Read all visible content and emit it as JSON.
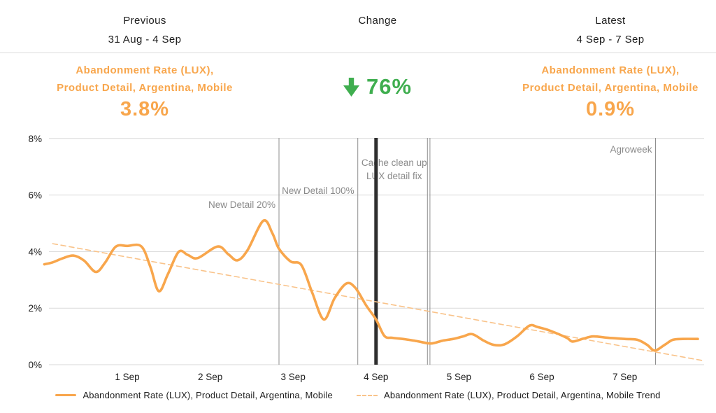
{
  "header": {
    "previous": {
      "label": "Previous",
      "range": "31 Aug - 4 Sep"
    },
    "change": {
      "label": "Change"
    },
    "latest": {
      "label": "Latest",
      "range": "4 Sep - 7 Sep"
    }
  },
  "summary": {
    "previous": {
      "metric_line1": "Abandonment Rate (LUX),",
      "metric_line2": "Product Detail, Argentina, Mobile",
      "value": "3.8%"
    },
    "change": {
      "direction": "down",
      "value": "76%",
      "icon": "down-arrow-icon"
    },
    "latest": {
      "metric_line1": "Abandonment Rate (LUX),",
      "metric_line2": "Product Detail, Argentina, Mobile",
      "value": "0.9%"
    }
  },
  "colors": {
    "orange": "#F8A64C",
    "trend_orange": "#F9C38A",
    "green": "#3FAE4F",
    "text": "#1C1C1C",
    "grid": "#D9D9D9",
    "divider": "#DDDDDD",
    "annotation_line": "#8F8F8F",
    "annotation_thick": "#2E2E2E",
    "annotation_text": "#8A8A8A"
  },
  "chart_data": {
    "type": "line",
    "title": "",
    "x_axis": {
      "note": "x in days, 0 = 31 Aug 00:00",
      "domain_days": [
        0,
        7.95
      ],
      "tick_days": [
        1,
        2,
        3,
        4,
        5,
        6,
        7
      ],
      "tick_labels": [
        "1 Sep",
        "2 Sep",
        "3 Sep",
        "4 Sep",
        "5 Sep",
        "6 Sep",
        "7 Sep"
      ]
    },
    "y_axis": {
      "unit": "%",
      "ylim": [
        0,
        8
      ],
      "tick_values": [
        8,
        6,
        4,
        2,
        0
      ],
      "tick_labels": [
        "8%",
        "6%",
        "4%",
        "2%",
        "0%"
      ],
      "grid": true
    },
    "series": [
      {
        "name": "Abandonment Rate (LUX), Product Detail, Argentina, Mobile",
        "style": "solid",
        "color": "#F8A64C",
        "points": [
          [
            0.0,
            3.55
          ],
          [
            0.1,
            3.62
          ],
          [
            0.22,
            3.76
          ],
          [
            0.35,
            3.86
          ],
          [
            0.48,
            3.68
          ],
          [
            0.62,
            3.28
          ],
          [
            0.73,
            3.6
          ],
          [
            0.86,
            4.17
          ],
          [
            1.0,
            4.2
          ],
          [
            1.17,
            4.18
          ],
          [
            1.28,
            3.45
          ],
          [
            1.38,
            2.6
          ],
          [
            1.49,
            3.2
          ],
          [
            1.62,
            3.99
          ],
          [
            1.73,
            3.88
          ],
          [
            1.85,
            3.77
          ],
          [
            2.09,
            4.18
          ],
          [
            2.22,
            3.9
          ],
          [
            2.33,
            3.69
          ],
          [
            2.45,
            4.05
          ],
          [
            2.64,
            5.09
          ],
          [
            2.75,
            4.65
          ],
          [
            2.83,
            4.1
          ],
          [
            2.97,
            3.65
          ],
          [
            3.1,
            3.52
          ],
          [
            3.23,
            2.55
          ],
          [
            3.37,
            1.6
          ],
          [
            3.5,
            2.35
          ],
          [
            3.64,
            2.87
          ],
          [
            3.75,
            2.72
          ],
          [
            3.88,
            2.1
          ],
          [
            4.0,
            1.6
          ],
          [
            4.1,
            1.02
          ],
          [
            4.2,
            0.95
          ],
          [
            4.35,
            0.9
          ],
          [
            4.5,
            0.83
          ],
          [
            4.66,
            0.75
          ],
          [
            4.8,
            0.85
          ],
          [
            4.93,
            0.91
          ],
          [
            5.05,
            1.0
          ],
          [
            5.16,
            1.08
          ],
          [
            5.3,
            0.85
          ],
          [
            5.42,
            0.7
          ],
          [
            5.55,
            0.72
          ],
          [
            5.7,
            1.0
          ],
          [
            5.85,
            1.38
          ],
          [
            5.95,
            1.33
          ],
          [
            6.1,
            1.2
          ],
          [
            6.3,
            0.95
          ],
          [
            6.37,
            0.82
          ],
          [
            6.5,
            0.92
          ],
          [
            6.62,
            1.0
          ],
          [
            6.8,
            0.95
          ],
          [
            7.0,
            0.91
          ],
          [
            7.15,
            0.88
          ],
          [
            7.27,
            0.7
          ],
          [
            7.36,
            0.5
          ],
          [
            7.48,
            0.7
          ],
          [
            7.58,
            0.88
          ],
          [
            7.7,
            0.91
          ],
          [
            7.88,
            0.91
          ]
        ]
      },
      {
        "name": "Abandonment Rate (LUX), Product Detail, Argentina, Mobile Trend",
        "style": "dashed",
        "color": "#F9C38A",
        "points": [
          [
            0.1,
            4.28
          ],
          [
            7.93,
            0.15
          ]
        ]
      }
    ],
    "annotations": [
      {
        "id": "new-detail-20",
        "label_lines": [
          "New Detail 20%"
        ],
        "days": [
          2.83
        ],
        "style": "thin",
        "label_anchor": "end",
        "label_dx": -5,
        "label_baselines": [
          112
        ]
      },
      {
        "id": "new-detail-100",
        "label_lines": [
          "New Detail 100%"
        ],
        "days": [
          3.78
        ],
        "style": "thin",
        "label_anchor": "end",
        "label_dx": -5,
        "label_baselines": [
          92
        ]
      },
      {
        "id": "cache-clean-up-lux-detail-fix",
        "label_lines": [
          "Cache clean up",
          "LUX detail fix"
        ],
        "days": [
          4.0
        ],
        "style": "thick",
        "label_anchor": "middle",
        "label_dx": 26,
        "label_baselines": [
          52,
          71
        ]
      },
      {
        "id": "unlabeled-event-pair",
        "label_lines": [],
        "days": [
          4.62,
          4.65
        ],
        "style": "thin",
        "label_anchor": "end",
        "label_dx": 0,
        "label_baselines": []
      },
      {
        "id": "agroweek",
        "label_lines": [
          "Agroweek"
        ],
        "days": [
          7.37
        ],
        "style": "thin",
        "label_anchor": "end",
        "label_dx": -5,
        "label_baselines": [
          33
        ]
      }
    ],
    "legend": [
      {
        "label": "Abandonment Rate (LUX), Product Detail, Argentina, Mobile",
        "style": "solid"
      },
      {
        "label": "Abandonment Rate (LUX), Product Detail, Argentina, Mobile Trend",
        "style": "dashed"
      }
    ],
    "legend_position": "bottom-center"
  }
}
